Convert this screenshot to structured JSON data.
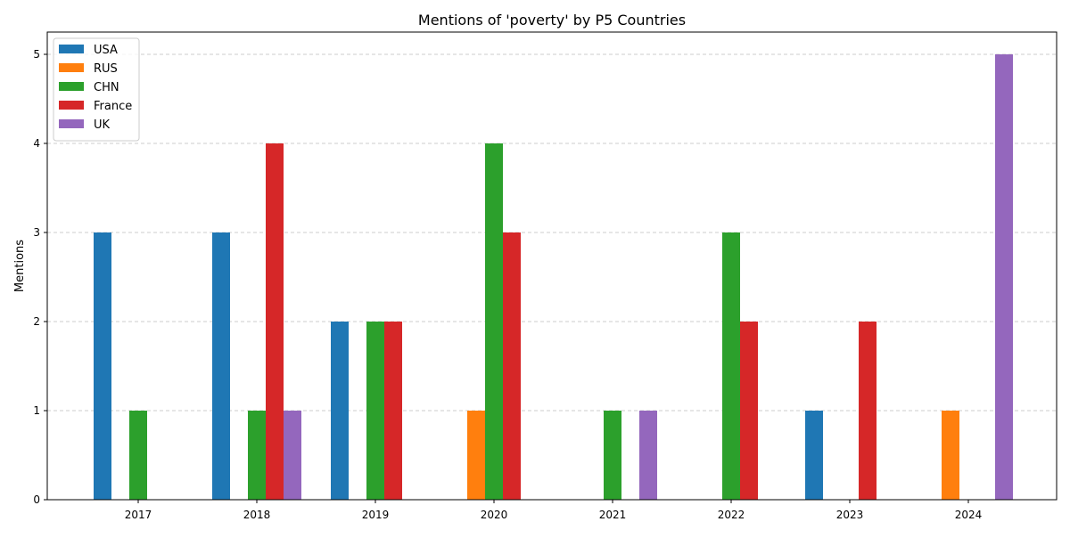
{
  "chart_data": {
    "type": "bar",
    "title": "Mentions of 'poverty' by P5 Countries",
    "xlabel": "",
    "ylabel": "Mentions",
    "categories": [
      "2017",
      "2018",
      "2019",
      "2020",
      "2021",
      "2022",
      "2023",
      "2024"
    ],
    "series": [
      {
        "name": "USA",
        "color": "#1f77b4",
        "values": [
          3,
          3,
          2,
          0,
          0,
          0,
          1,
          0
        ]
      },
      {
        "name": "RUS",
        "color": "#ff7f0e",
        "values": [
          0,
          0,
          0,
          1,
          0,
          0,
          0,
          1
        ]
      },
      {
        "name": "CHN",
        "color": "#2ca02c",
        "values": [
          1,
          1,
          2,
          4,
          1,
          3,
          0,
          0
        ]
      },
      {
        "name": "France",
        "color": "#d62728",
        "values": [
          0,
          4,
          2,
          3,
          0,
          2,
          2,
          0
        ]
      },
      {
        "name": "UK",
        "color": "#9467bd",
        "values": [
          0,
          1,
          0,
          0,
          1,
          0,
          0,
          5
        ]
      }
    ],
    "ylim": [
      0,
      5.25
    ],
    "yticks": [
      0,
      1,
      2,
      3,
      4,
      5
    ],
    "grid": "y-dashed",
    "legend_position": "top-left"
  }
}
